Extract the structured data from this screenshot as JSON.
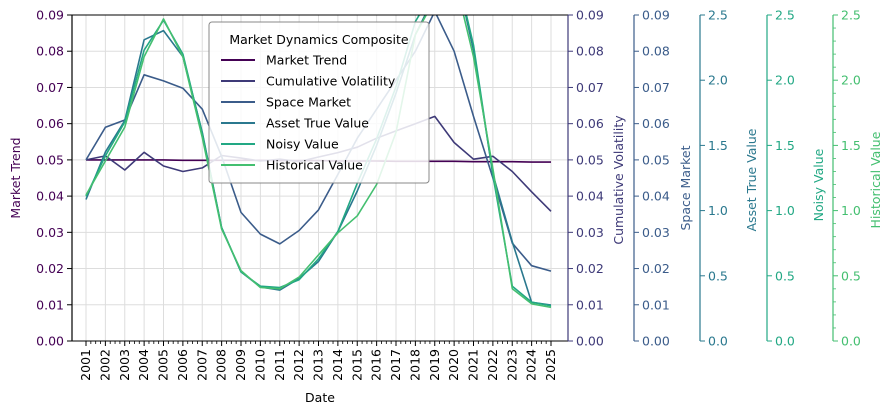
{
  "chart_data": {
    "type": "line",
    "title": "",
    "xlabel": "Date",
    "x": [
      "2001",
      "2002",
      "2003",
      "2004",
      "2005",
      "2006",
      "2007",
      "2008",
      "2009",
      "2010",
      "2011",
      "2012",
      "2013",
      "2014",
      "2015",
      "2016",
      "2017",
      "2018",
      "2019",
      "2020",
      "2021",
      "2022",
      "2023",
      "2024",
      "2025"
    ],
    "grid": true,
    "legend": {
      "title": "Market Dynamics Composite",
      "placement": "top-center"
    },
    "axes": [
      {
        "id": "market-trend-axis",
        "label": "Market Trend",
        "ylim": [
          0,
          0.09
        ],
        "ticks": [
          "0.00",
          "0.01",
          "0.02",
          "0.03",
          "0.04",
          "0.05",
          "0.06",
          "0.07",
          "0.08",
          "0.09"
        ],
        "color": "#440154"
      },
      {
        "id": "cumulative-volatility-axis",
        "label": "Cumulative Volatility",
        "ylim": [
          0,
          0.09
        ],
        "ticks": [
          "0.00",
          "0.01",
          "0.02",
          "0.03",
          "0.04",
          "0.05",
          "0.06",
          "0.07",
          "0.08",
          "0.09"
        ],
        "color": "#3e3a78"
      },
      {
        "id": "space-market-axis",
        "label": "Space Market",
        "ylim": [
          0,
          0.09
        ],
        "ticks": [
          "0.00",
          "0.01",
          "0.02",
          "0.03",
          "0.04",
          "0.05",
          "0.06",
          "0.07",
          "0.08",
          "0.09"
        ],
        "color": "#3b5c8a"
      },
      {
        "id": "asset-true-value-axis",
        "label": "Asset True Value",
        "ylim": [
          0,
          2.5
        ],
        "ticks": [
          "0.0",
          "0.5",
          "1.0",
          "1.5",
          "2.0",
          "2.5"
        ],
        "color": "#2a788e"
      },
      {
        "id": "noisy-value-axis",
        "label": "Noisy Value",
        "ylim": [
          0,
          2.5
        ],
        "ticks": [
          "0.0",
          "0.5",
          "1.0",
          "1.5",
          "2.0",
          "2.5"
        ],
        "color": "#22a884"
      },
      {
        "id": "historical-value-axis",
        "label": "Historical Value",
        "ylim": [
          0,
          2.5
        ],
        "ticks": [
          "0.0",
          "0.5",
          "1.0",
          "1.5",
          "2.0",
          "2.5"
        ],
        "color": "#44bf70"
      }
    ],
    "series": [
      {
        "name": "Market Trend",
        "axis": 0,
        "color": "#440154",
        "values": [
          0.05,
          0.05,
          0.05,
          0.05,
          0.05,
          0.0499,
          0.0499,
          0.0499,
          0.0499,
          0.0499,
          0.0498,
          0.0498,
          0.0498,
          0.0497,
          0.0497,
          0.0497,
          0.0496,
          0.0496,
          0.0496,
          0.0496,
          0.0495,
          0.0495,
          0.0495,
          0.0494,
          0.0494
        ]
      },
      {
        "name": "Cumulative Volatility",
        "axis": 1,
        "color": "#3e3a78",
        "values": [
          0.05,
          0.0511,
          0.0472,
          0.0521,
          0.0483,
          0.0468,
          0.0478,
          0.0512,
          0.0505,
          0.0497,
          0.0502,
          0.0495,
          0.0508,
          0.052,
          0.0535,
          0.056,
          0.058,
          0.06,
          0.062,
          0.0548,
          0.0502,
          0.051,
          0.0468,
          0.0412,
          0.0358
        ]
      },
      {
        "name": "Space Market",
        "axis": 2,
        "color": "#3b5c8a",
        "values": [
          0.05,
          0.059,
          0.061,
          0.0735,
          0.0718,
          0.0698,
          0.064,
          0.051,
          0.0355,
          0.0295,
          0.0268,
          0.0305,
          0.0362,
          0.046,
          0.056,
          0.064,
          0.072,
          0.08,
          0.091,
          0.08,
          0.062,
          0.045,
          0.027,
          0.0208,
          0.0193
        ]
      },
      {
        "name": "Asset True Value",
        "axis": 3,
        "color": "#2a788e",
        "values": [
          1.085,
          1.45,
          1.69,
          2.31,
          2.38,
          2.18,
          1.6,
          0.87,
          0.53,
          0.415,
          0.39,
          0.48,
          0.61,
          0.84,
          1.15,
          1.5,
          1.9,
          2.35,
          2.65,
          2.9,
          2.23,
          1.28,
          0.76,
          0.297,
          0.275
        ]
      },
      {
        "name": "Noisy Value",
        "axis": 4,
        "color": "#22a884",
        "values": [
          1.11,
          1.42,
          1.68,
          2.23,
          2.46,
          2.2,
          1.59,
          0.87,
          0.53,
          0.42,
          0.41,
          0.47,
          0.63,
          0.84,
          1.21,
          1.55,
          1.95,
          2.45,
          2.7,
          2.9,
          2.27,
          1.27,
          0.42,
          0.298,
          0.27
        ]
      },
      {
        "name": "Historical Value",
        "axis": 5,
        "color": "#44bf70",
        "values": [
          1.12,
          1.38,
          1.64,
          2.18,
          2.47,
          2.18,
          1.56,
          0.86,
          0.54,
          0.41,
          0.4,
          0.49,
          0.66,
          0.83,
          0.96,
          1.2,
          1.6,
          2.35,
          2.62,
          2.8,
          2.18,
          1.32,
          0.4,
          0.285,
          0.258
        ]
      }
    ]
  }
}
